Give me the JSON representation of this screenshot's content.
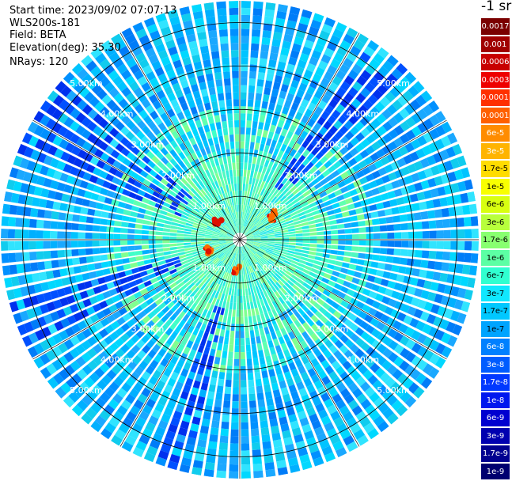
{
  "header": {
    "start_time": "Start time: 2023/09/02 07:07:13",
    "instrument": "WLS200s-181",
    "field": "Field: BETA",
    "elevation": "Elevation(deg): 35.30",
    "nrays": "NRays: 120"
  },
  "chart_data": {
    "type": "heatmap",
    "subtype": "polar-ppi",
    "field": "BETA",
    "elevation_deg": 35.3,
    "nrays": 120,
    "range_rings_km": [
      1,
      2,
      3,
      4,
      5
    ],
    "ring_labels": [
      "1.00km",
      "2.00km",
      "3.00km",
      "4.00km",
      "5.00km"
    ],
    "max_range_km": 5.5,
    "features": [
      {
        "azimuth_deg": 55,
        "range_km": 0.95,
        "note": "high backscatter patch"
      },
      {
        "azimuth_deg": 310,
        "range_km": 0.7,
        "note": "high backscatter patch"
      },
      {
        "azimuth_deg": 250,
        "range_km": 0.75,
        "note": "high backscatter patch"
      },
      {
        "azimuth_deg": 185,
        "range_km": 0.7,
        "note": "high backscatter patch"
      }
    ],
    "colorbar": {
      "title": "-1 sr",
      "labels": [
        "0.0017",
        "0.001",
        "0.0006",
        "0.0003",
        "0.00017",
        "0.0001",
        "6e-5",
        "3e-5",
        "1.7e-5",
        "1e-5",
        "6e-6",
        "3e-6",
        "1.7e-6",
        "1e-6",
        "6e-7",
        "3e-7",
        "1.7e-7",
        "1e-7",
        "6e-8",
        "3e-8",
        "1.7e-8",
        "1e-8",
        "6e-9",
        "3e-9",
        "1.7e-9",
        "1e-9"
      ],
      "colors": [
        "#7a0000",
        "#a00000",
        "#c80000",
        "#ee0000",
        "#ff3000",
        "#ff6000",
        "#ff8c00",
        "#ffb400",
        "#ffdc00",
        "#f8ff00",
        "#d8ff10",
        "#b8ff3c",
        "#88ff70",
        "#5cffa4",
        "#30ffd0",
        "#10e8ff",
        "#00c8ff",
        "#00a4ff",
        "#0080ff",
        "#005cff",
        "#0038ff",
        "#0018ee",
        "#0000d0",
        "#0000b0",
        "#000090",
        "#000070"
      ]
    }
  }
}
